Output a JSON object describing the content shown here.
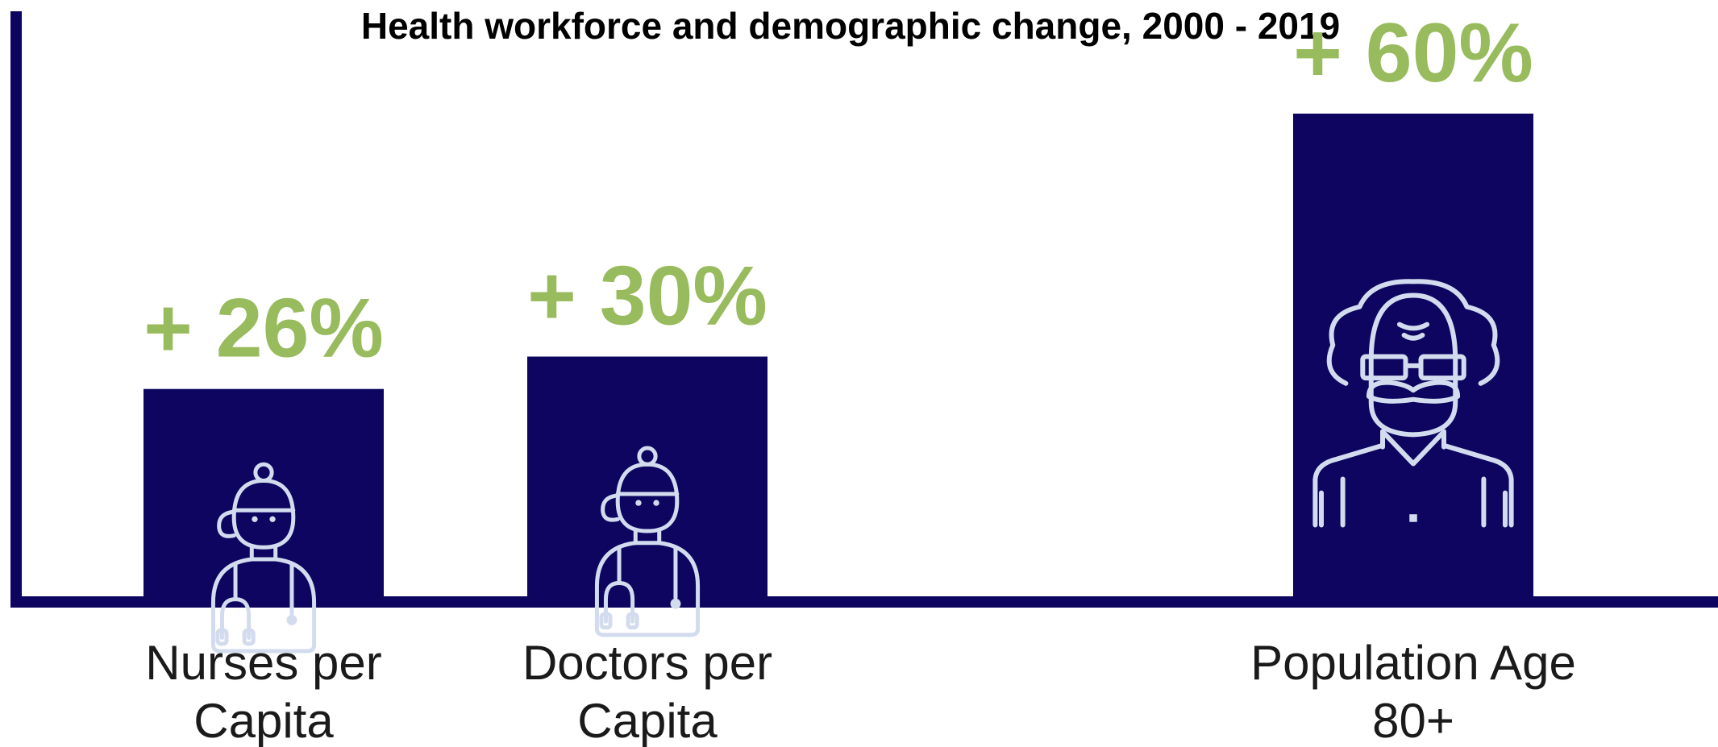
{
  "chart_data": {
    "type": "bar",
    "title": "Health workforce and demographic change, 2000 - 2019",
    "categories": [
      [
        "Nurses per",
        "Capita"
      ],
      [
        "Doctors per",
        "Capita"
      ],
      [
        "Population Age",
        "80+"
      ]
    ],
    "values": [
      26,
      30,
      60
    ],
    "value_labels": [
      "+ 26%",
      "+ 30%",
      "+ 60%"
    ],
    "icons": [
      "nurse-icon",
      "doctor-icon",
      "elderly-man-icon"
    ],
    "ylim": [
      0,
      70
    ],
    "grid": false,
    "legend": "none",
    "colors": {
      "bar": "#0d0560",
      "axis": "#0d0560",
      "value_label": "#98bb5d",
      "icon": "#d3dcee"
    }
  }
}
